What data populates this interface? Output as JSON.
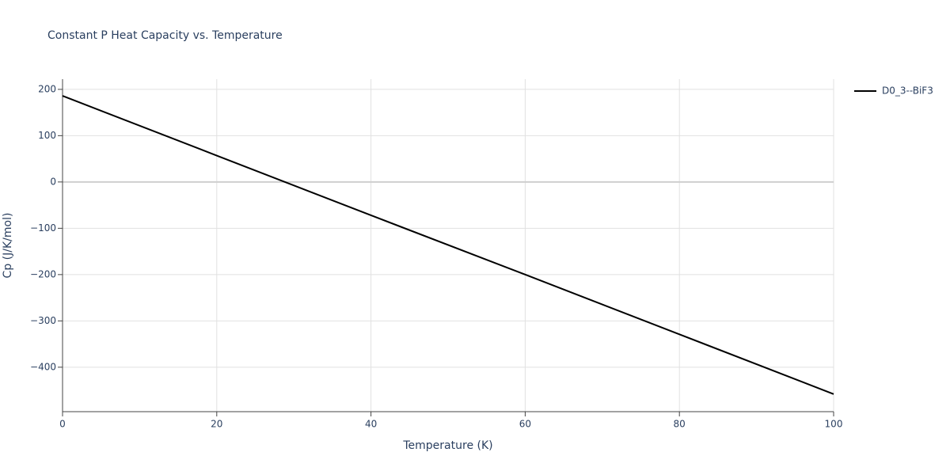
{
  "chart_data": {
    "type": "line",
    "title": "Constant P Heat Capacity vs. Temperature",
    "x_label": "Temperature (K)",
    "y_label": "Cp (J/K/mol)",
    "x": [
      0,
      20,
      40,
      60,
      80,
      100
    ],
    "series": [
      {
        "name": "D0_3--BiF3",
        "color": "#000000",
        "values": [
          186,
          57,
          -72,
          -200,
          -329,
          -458
        ]
      }
    ],
    "xlim": [
      0,
      100
    ],
    "xticks": [
      0,
      20,
      40,
      60,
      80,
      100
    ],
    "ylim": [
      -496,
      222
    ],
    "yticks": [
      {
        "value": -400,
        "label": "−400"
      },
      {
        "value": -300,
        "label": "−300"
      },
      {
        "value": -200,
        "label": "−200"
      },
      {
        "value": -100,
        "label": "−100"
      },
      0,
      100,
      200
    ],
    "grid": true,
    "legend": "right"
  }
}
